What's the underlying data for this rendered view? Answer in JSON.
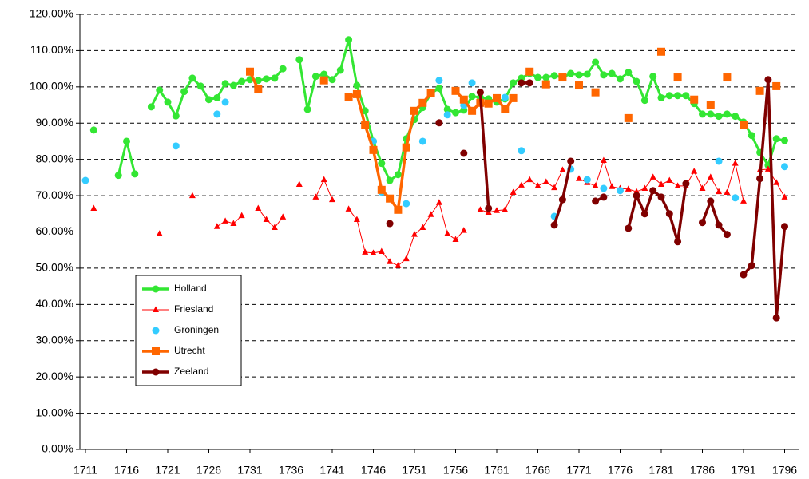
{
  "chart_data": {
    "type": "line",
    "x": [
      1711,
      1712,
      1713,
      1714,
      1715,
      1716,
      1717,
      1718,
      1719,
      1720,
      1721,
      1722,
      1723,
      1724,
      1725,
      1726,
      1727,
      1728,
      1729,
      1730,
      1731,
      1732,
      1733,
      1734,
      1735,
      1736,
      1737,
      1738,
      1739,
      1740,
      1741,
      1742,
      1743,
      1744,
      1745,
      1746,
      1747,
      1748,
      1749,
      1750,
      1751,
      1752,
      1753,
      1754,
      1755,
      1756,
      1757,
      1758,
      1759,
      1760,
      1761,
      1762,
      1763,
      1764,
      1765,
      1766,
      1767,
      1768,
      1769,
      1770,
      1771,
      1772,
      1773,
      1774,
      1775,
      1776,
      1777,
      1778,
      1779,
      1780,
      1781,
      1782,
      1783,
      1784,
      1785,
      1786,
      1787,
      1788,
      1789,
      1790,
      1791,
      1792,
      1793,
      1794,
      1795,
      1796
    ],
    "xlim": [
      1710.32,
      1797.7
    ],
    "xticks": [
      1711,
      1716,
      1721,
      1726,
      1731,
      1736,
      1741,
      1746,
      1751,
      1756,
      1761,
      1766,
      1771,
      1776,
      1781,
      1786,
      1791,
      1796
    ],
    "ylim": [
      0,
      120
    ],
    "yticks": [
      {
        "value": 0,
        "label": "0.00%"
      },
      {
        "value": 10,
        "label": "10.00%"
      },
      {
        "value": 20,
        "label": "20.00%"
      },
      {
        "value": 30,
        "label": "30.00%"
      },
      {
        "value": 40,
        "label": "40.00%"
      },
      {
        "value": 50,
        "label": "50.00%"
      },
      {
        "value": 60,
        "label": "60.00%"
      },
      {
        "value": 70,
        "label": "70.00%"
      },
      {
        "value": 80,
        "label": "80.00%"
      },
      {
        "value": 90,
        "label": "90.00%"
      },
      {
        "value": 100,
        "label": "100.00%"
      },
      {
        "value": 110,
        "label": "110.00%"
      },
      {
        "value": 120,
        "label": "120.00%"
      }
    ],
    "grid": true,
    "legend": "lower left",
    "series": [
      {
        "name": "Holland",
        "color": "#33e633",
        "marker": "circle",
        "line": true,
        "values": [
          null,
          88.1,
          null,
          null,
          75.6,
          85,
          76,
          null,
          94.5,
          99.1,
          95.8,
          92,
          98.7,
          102.4,
          100.2,
          96.5,
          97,
          100.9,
          100.4,
          101.5,
          102,
          101.8,
          102.2,
          102.4,
          105,
          null,
          107.5,
          93.8,
          102.9,
          103.5,
          102,
          104.6,
          113,
          100.4,
          93.4,
          85,
          78.9,
          74.2,
          75.8,
          85.7,
          91,
          94.3,
          98.2,
          99.6,
          93.8,
          92.9,
          93.6,
          97.4,
          97.1,
          96.7,
          95.8,
          96.7,
          101.1,
          102.4,
          103.7,
          102.6,
          102.6,
          103.1,
          102.6,
          103.7,
          103.3,
          103.5,
          106.8,
          103.3,
          103.7,
          102.2,
          104,
          101.5,
          96.3,
          102.9,
          97,
          97.6,
          97.6,
          97.6,
          95.4,
          92.5,
          92.5,
          91.9,
          92.5,
          91.9,
          90.3,
          86.6,
          81.9,
          78.4,
          85.7,
          85.2
        ]
      },
      {
        "name": "Friesland",
        "color": "#ff0000",
        "marker": "triangle",
        "line": true,
        "values": [
          null,
          66.5,
          null,
          null,
          null,
          null,
          null,
          null,
          null,
          59.5,
          null,
          null,
          null,
          70,
          null,
          null,
          61.5,
          63,
          62.3,
          64.5,
          null,
          66.5,
          63.4,
          61.2,
          64.1,
          null,
          73.1,
          null,
          69.6,
          74.4,
          68.9,
          null,
          66.3,
          63.4,
          54.4,
          54.2,
          54.6,
          51.8,
          50.7,
          52.6,
          59.3,
          61.2,
          64.8,
          68.1,
          59.5,
          57.9,
          60.4,
          null,
          66.1,
          65.4,
          65.9,
          66.1,
          70.9,
          72.9,
          74.4,
          72.7,
          73.8,
          72.2,
          77.1,
          null,
          74.7,
          73.6,
          72.7,
          79.7,
          72.5,
          72,
          71.8,
          71.1,
          72,
          75.1,
          73.1,
          74.2,
          72.7,
          72.7,
          76.7,
          72,
          75.1,
          71.1,
          70.9,
          78.9,
          68.5,
          null,
          77.1,
          77.3,
          73.6,
          69.6
        ]
      },
      {
        "name": "Groningen",
        "color": "#33ccff",
        "marker": "circle",
        "line": false,
        "values": [
          74.2,
          null,
          null,
          null,
          null,
          null,
          null,
          null,
          null,
          null,
          null,
          83.7,
          null,
          null,
          null,
          null,
          92.5,
          95.8,
          null,
          null,
          null,
          null,
          null,
          null,
          null,
          null,
          null,
          null,
          null,
          null,
          null,
          null,
          null,
          null,
          null,
          85,
          71,
          null,
          null,
          67.8,
          null,
          85,
          null,
          101.8,
          92.3,
          null,
          94.9,
          101.1,
          null,
          null,
          null,
          97.1,
          null,
          82.4,
          null,
          null,
          null,
          64.3,
          null,
          77.3,
          null,
          74.4,
          null,
          72,
          null,
          71.4,
          null,
          null,
          null,
          null,
          null,
          null,
          null,
          null,
          null,
          null,
          null,
          79.5,
          null,
          69.4,
          null,
          null,
          null,
          null,
          null,
          78
        ]
      },
      {
        "name": "Utrecht",
        "color": "#ff6600",
        "marker": "square",
        "line": true,
        "values": [
          null,
          null,
          null,
          null,
          null,
          null,
          null,
          null,
          null,
          null,
          null,
          null,
          null,
          null,
          null,
          null,
          null,
          null,
          null,
          null,
          104.2,
          99.3,
          null,
          null,
          null,
          null,
          null,
          null,
          null,
          101.8,
          null,
          null,
          97.1,
          98,
          89.4,
          82.6,
          71.6,
          69.2,
          66.1,
          83.3,
          93.4,
          95.6,
          98.2,
          null,
          null,
          98.9,
          96.5,
          93.4,
          95.6,
          95.4,
          96.9,
          93.8,
          96.9,
          null,
          104.2,
          null,
          100.7,
          null,
          102.6,
          null,
          100.4,
          null,
          98.5,
          null,
          null,
          null,
          91.4,
          null,
          null,
          null,
          109.7,
          null,
          102.6,
          null,
          96.5,
          null,
          94.9,
          null,
          102.6,
          null,
          89.4,
          null,
          98.9,
          null,
          100.2,
          null
        ]
      },
      {
        "name": "Zeeland",
        "color": "#800000",
        "marker": "circle",
        "line": true,
        "values": [
          null,
          null,
          null,
          null,
          null,
          null,
          null,
          null,
          null,
          null,
          null,
          null,
          null,
          null,
          null,
          null,
          null,
          null,
          null,
          null,
          null,
          null,
          null,
          null,
          null,
          null,
          null,
          null,
          null,
          null,
          null,
          null,
          null,
          null,
          null,
          null,
          null,
          62.3,
          null,
          null,
          null,
          null,
          null,
          90.1,
          null,
          null,
          81.7,
          null,
          98.5,
          66.5,
          null,
          null,
          null,
          101.1,
          101.1,
          null,
          null,
          61.9,
          68.9,
          79.5,
          null,
          null,
          68.5,
          69.6,
          null,
          null,
          61,
          70,
          65,
          71.4,
          69.6,
          65,
          57.3,
          73.3,
          null,
          62.6,
          68.5,
          61.9,
          59.3,
          null,
          48.2,
          50.7,
          74.7,
          102,
          36.3,
          61.5
        ]
      }
    ]
  }
}
